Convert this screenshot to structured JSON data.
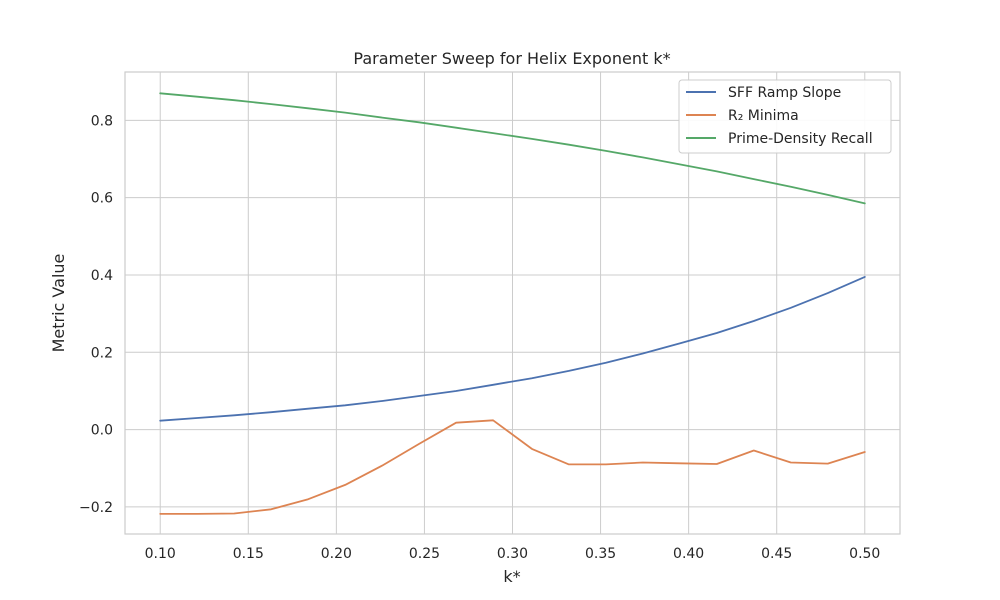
{
  "chart_data": {
    "type": "line",
    "title": "Parameter Sweep for Helix Exponent k*",
    "xlabel": "k*",
    "ylabel": "Metric Value",
    "xlim": [
      0.08,
      0.52
    ],
    "ylim": [
      -0.27,
      0.925
    ],
    "xticks": [
      0.1,
      0.15,
      0.2,
      0.25,
      0.3,
      0.35,
      0.4,
      0.45,
      0.5
    ],
    "xtick_labels": [
      "0.10",
      "0.15",
      "0.20",
      "0.25",
      "0.30",
      "0.35",
      "0.40",
      "0.45",
      "0.50"
    ],
    "yticks": [
      -0.2,
      0.0,
      0.2,
      0.4,
      0.6,
      0.8
    ],
    "ytick_labels": [
      "−0.2",
      "0.0",
      "0.2",
      "0.4",
      "0.6",
      "0.8"
    ],
    "grid": true,
    "legend_position": "top-right",
    "series": [
      {
        "name": "SFF Ramp Slope",
        "color": "#4c72b0",
        "x": [
          0.1,
          0.121,
          0.142,
          0.163,
          0.184,
          0.205,
          0.226,
          0.247,
          0.268,
          0.289,
          0.311,
          0.332,
          0.353,
          0.374,
          0.395,
          0.416,
          0.437,
          0.458,
          0.479,
          0.5
        ],
        "y": [
          0.023,
          0.03,
          0.037,
          0.045,
          0.054,
          0.063,
          0.074,
          0.087,
          0.1,
          0.116,
          0.133,
          0.152,
          0.173,
          0.197,
          0.223,
          0.25,
          0.281,
          0.315,
          0.353,
          0.395
        ]
      },
      {
        "name": "R₂ Minima",
        "color": "#dd8452",
        "x": [
          0.1,
          0.121,
          0.142,
          0.163,
          0.184,
          0.205,
          0.226,
          0.247,
          0.268,
          0.289,
          0.311,
          0.332,
          0.353,
          0.374,
          0.395,
          0.416,
          0.437,
          0.458,
          0.479,
          0.5
        ],
        "y": [
          -0.218,
          -0.218,
          -0.217,
          -0.206,
          -0.18,
          -0.143,
          -0.093,
          -0.037,
          0.018,
          0.024,
          -0.05,
          -0.09,
          -0.09,
          -0.085,
          -0.087,
          -0.089,
          -0.054,
          -0.085,
          -0.088,
          -0.058
        ]
      },
      {
        "name": "Prime-Density Recall",
        "color": "#55a868",
        "x": [
          0.1,
          0.121,
          0.142,
          0.163,
          0.184,
          0.205,
          0.226,
          0.247,
          0.268,
          0.289,
          0.311,
          0.332,
          0.353,
          0.374,
          0.395,
          0.416,
          0.437,
          0.458,
          0.479,
          0.5
        ],
        "y": [
          0.87,
          0.861,
          0.852,
          0.842,
          0.831,
          0.82,
          0.807,
          0.795,
          0.781,
          0.767,
          0.752,
          0.737,
          0.721,
          0.704,
          0.686,
          0.668,
          0.648,
          0.628,
          0.607,
          0.585
        ]
      }
    ]
  }
}
